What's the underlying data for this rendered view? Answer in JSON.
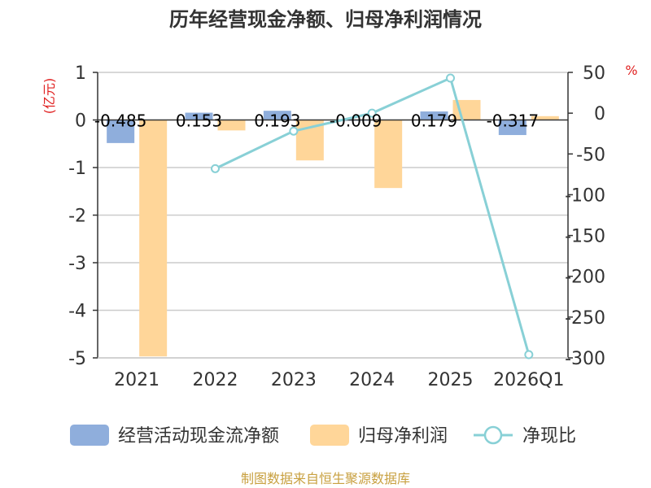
{
  "chart_data": {
    "type": "bar+line",
    "title": "历年经营现金净额、归母净利润情况",
    "categories": [
      "2021",
      "2022",
      "2023",
      "2024",
      "2025",
      "2026Q1"
    ],
    "series": [
      {
        "name": "经营活动现金流净额",
        "type": "bar",
        "axis": "left",
        "values": [
          -0.485,
          0.153,
          0.193,
          -0.009,
          0.179,
          -0.317
        ],
        "labels": [
          "-0.485",
          "0.153",
          "0.193",
          "-0.009",
          "0.179",
          "-0.317"
        ]
      },
      {
        "name": "归母净利润",
        "type": "bar",
        "axis": "left",
        "values": [
          -4.97,
          -0.22,
          -0.85,
          -1.43,
          0.42,
          0.08
        ]
      },
      {
        "name": "净现比",
        "type": "line",
        "axis": "right",
        "values": [
          null,
          -68,
          -22,
          0,
          43,
          -296
        ]
      }
    ],
    "left_axis": {
      "unit": "(亿元)",
      "ylim": [
        -5,
        1
      ],
      "ticks": [
        "1",
        "0",
        "-1",
        "-2",
        "-3",
        "-4",
        "-5"
      ]
    },
    "right_axis": {
      "unit": "%",
      "ylim": [
        -300,
        50
      ],
      "ticks": [
        "50",
        "0",
        "-50",
        "-100",
        "-150",
        "-200",
        "-250",
        "-300"
      ]
    },
    "colors": {
      "cash": "#8FAEDC",
      "profit": "#FFD699",
      "ratio": "#88D0D6",
      "unit": "#E02020",
      "source": "#C8A040",
      "grid": "#CCCCCC",
      "axis": "#333333"
    },
    "source": "制图数据来自恒生聚源数据库"
  }
}
